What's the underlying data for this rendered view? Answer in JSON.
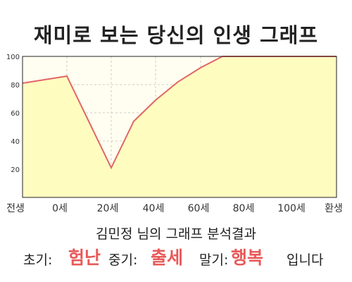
{
  "chart_data": {
    "type": "area",
    "title": "재미로 보는 당신의 인생 그래프",
    "x_categories": [
      "전생",
      "0세",
      "20세",
      "40세",
      "60세",
      "80세",
      "100세",
      "환생"
    ],
    "x": [
      "전생",
      "0세",
      "20세",
      "30세",
      "40세",
      "50세",
      "60세",
      "70세",
      "80세",
      "환생"
    ],
    "y": [
      81,
      86,
      21,
      54,
      69,
      82,
      92,
      100,
      100,
      100
    ],
    "ylim": [
      0,
      100
    ],
    "yticks": [
      20,
      40,
      60,
      80,
      100
    ],
    "grid": true,
    "colors": {
      "line": "#e06666",
      "fill": "#fffcc0",
      "plot_bg": "#fffef0",
      "highlight": "#e85a5a"
    }
  },
  "summary": "김민정 님의 그래프 분석결과",
  "phases": {
    "early_label": "초기:",
    "early_value": "험난",
    "middle_label": "중기:",
    "middle_value": "출세",
    "late_label": "말기:",
    "late_value": "행복",
    "closing": "입니다"
  }
}
